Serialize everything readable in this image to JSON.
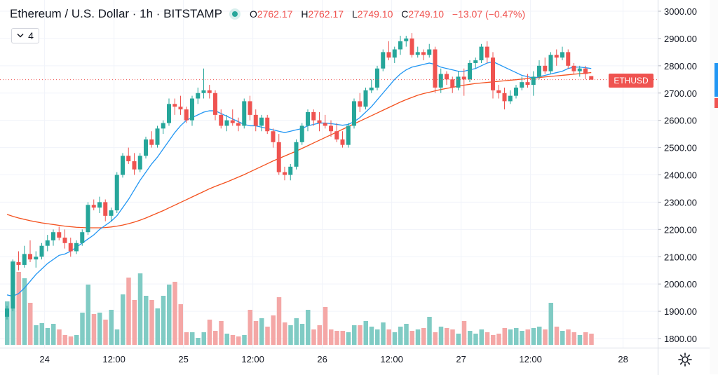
{
  "header": {
    "symbol_title": "Ethereum / U.S. Dollar · 1h · BITSTAMP",
    "ohlc": {
      "o_label": "O",
      "o": "2762.17",
      "h_label": "H",
      "h": "2762.17",
      "l_label": "L",
      "l": "2749.10",
      "c_label": "C",
      "c": "2749.10",
      "change": "−13.07 (−0.47%)"
    }
  },
  "study_toggle": {
    "count": "4"
  },
  "price_tag": {
    "label": "ETHUSD"
  },
  "colors": {
    "up": "#26a69a",
    "down": "#ef5350",
    "vol_up": "#80cbc4",
    "vol_down": "#f4a7a6",
    "ma_fast": "#2196f3",
    "ma_slow": "#f4511e",
    "grid": "#f0f3fa"
  },
  "chart_data": {
    "type": "candlestick",
    "ylim": [
      1780,
      3020
    ],
    "price_ticks": [
      "3000.00",
      "2900.00",
      "2800.00",
      "2700.00",
      "2600.00",
      "2500.00",
      "2400.00",
      "2300.00",
      "2200.00",
      "2100.00",
      "2000.00",
      "1900.00",
      "1800.00"
    ],
    "time_ticks": [
      "24",
      "12:00",
      "25",
      "12:00",
      "26",
      "12:00",
      "27",
      "12:00",
      "28"
    ],
    "candles": [
      [
        1880,
        1920,
        1870,
        1910
      ],
      [
        1910,
        2090,
        1900,
        2080
      ],
      [
        2080,
        2120,
        2050,
        2070
      ],
      [
        2070,
        2140,
        2060,
        2110
      ],
      [
        2110,
        2160,
        2080,
        2090
      ],
      [
        2090,
        2120,
        2060,
        2100
      ],
      [
        2100,
        2150,
        2090,
        2140
      ],
      [
        2140,
        2180,
        2120,
        2160
      ],
      [
        2160,
        2200,
        2140,
        2190
      ],
      [
        2190,
        2210,
        2160,
        2170
      ],
      [
        2170,
        2200,
        2130,
        2150
      ],
      [
        2150,
        2170,
        2100,
        2120
      ],
      [
        2120,
        2160,
        2110,
        2150
      ],
      [
        2150,
        2200,
        2140,
        2190
      ],
      [
        2190,
        2300,
        2180,
        2290
      ],
      [
        2290,
        2310,
        2270,
        2280
      ],
      [
        2280,
        2320,
        2260,
        2300
      ],
      [
        2300,
        2310,
        2230,
        2250
      ],
      [
        2250,
        2280,
        2230,
        2270
      ],
      [
        2270,
        2410,
        2260,
        2400
      ],
      [
        2400,
        2480,
        2390,
        2470
      ],
      [
        2470,
        2500,
        2440,
        2450
      ],
      [
        2450,
        2480,
        2400,
        2420
      ],
      [
        2420,
        2480,
        2410,
        2470
      ],
      [
        2470,
        2540,
        2460,
        2530
      ],
      [
        2530,
        2560,
        2500,
        2510
      ],
      [
        2510,
        2580,
        2500,
        2570
      ],
      [
        2570,
        2600,
        2550,
        2590
      ],
      [
        2590,
        2680,
        2580,
        2660
      ],
      [
        2660,
        2680,
        2620,
        2650
      ],
      [
        2650,
        2690,
        2620,
        2640
      ],
      [
        2640,
        2650,
        2590,
        2600
      ],
      [
        2600,
        2690,
        2580,
        2680
      ],
      [
        2680,
        2720,
        2660,
        2700
      ],
      [
        2700,
        2790,
        2680,
        2710
      ],
      [
        2710,
        2730,
        2680,
        2700
      ],
      [
        2700,
        2710,
        2600,
        2620
      ],
      [
        2620,
        2640,
        2570,
        2580
      ],
      [
        2580,
        2620,
        2560,
        2600
      ],
      [
        2600,
        2640,
        2580,
        2590
      ],
      [
        2590,
        2610,
        2560,
        2580
      ],
      [
        2580,
        2680,
        2570,
        2670
      ],
      [
        2670,
        2690,
        2600,
        2620
      ],
      [
        2620,
        2640,
        2560,
        2580
      ],
      [
        2580,
        2620,
        2560,
        2610
      ],
      [
        2610,
        2620,
        2550,
        2560
      ],
      [
        2560,
        2570,
        2500,
        2520
      ],
      [
        2520,
        2550,
        2400,
        2410
      ],
      [
        2410,
        2430,
        2380,
        2400
      ],
      [
        2400,
        2440,
        2380,
        2430
      ],
      [
        2430,
        2530,
        2420,
        2520
      ],
      [
        2520,
        2590,
        2510,
        2580
      ],
      [
        2580,
        2640,
        2560,
        2630
      ],
      [
        2630,
        2640,
        2580,
        2600
      ],
      [
        2600,
        2630,
        2560,
        2590
      ],
      [
        2590,
        2620,
        2570,
        2580
      ],
      [
        2580,
        2600,
        2540,
        2560
      ],
      [
        2560,
        2590,
        2520,
        2530
      ],
      [
        2530,
        2560,
        2500,
        2510
      ],
      [
        2510,
        2590,
        2500,
        2580
      ],
      [
        2580,
        2680,
        2570,
        2670
      ],
      [
        2670,
        2700,
        2630,
        2650
      ],
      [
        2650,
        2720,
        2640,
        2710
      ],
      [
        2710,
        2750,
        2700,
        2720
      ],
      [
        2720,
        2800,
        2710,
        2790
      ],
      [
        2790,
        2860,
        2780,
        2850
      ],
      [
        2850,
        2890,
        2820,
        2830
      ],
      [
        2830,
        2870,
        2810,
        2860
      ],
      [
        2860,
        2910,
        2840,
        2890
      ],
      [
        2890,
        2910,
        2870,
        2900
      ],
      [
        2900,
        2920,
        2830,
        2840
      ],
      [
        2840,
        2870,
        2830,
        2850
      ],
      [
        2850,
        2860,
        2820,
        2840
      ],
      [
        2840,
        2880,
        2830,
        2860
      ],
      [
        2860,
        2870,
        2700,
        2720
      ],
      [
        2720,
        2790,
        2700,
        2770
      ],
      [
        2770,
        2780,
        2730,
        2750
      ],
      [
        2750,
        2760,
        2700,
        2720
      ],
      [
        2720,
        2780,
        2710,
        2760
      ],
      [
        2760,
        2790,
        2690,
        2750
      ],
      [
        2750,
        2820,
        2740,
        2810
      ],
      [
        2810,
        2830,
        2790,
        2820
      ],
      [
        2820,
        2880,
        2810,
        2870
      ],
      [
        2870,
        2890,
        2810,
        2830
      ],
      [
        2830,
        2850,
        2680,
        2710
      ],
      [
        2710,
        2730,
        2680,
        2700
      ],
      [
        2700,
        2720,
        2640,
        2670
      ],
      [
        2670,
        2710,
        2660,
        2690
      ],
      [
        2690,
        2730,
        2680,
        2720
      ],
      [
        2720,
        2760,
        2710,
        2740
      ],
      [
        2740,
        2770,
        2720,
        2730
      ],
      [
        2730,
        2780,
        2690,
        2760
      ],
      [
        2760,
        2820,
        2750,
        2800
      ],
      [
        2800,
        2830,
        2770,
        2780
      ],
      [
        2780,
        2850,
        2770,
        2840
      ],
      [
        2840,
        2860,
        2800,
        2830
      ],
      [
        2830,
        2870,
        2820,
        2850
      ],
      [
        2850,
        2860,
        2790,
        2800
      ],
      [
        2800,
        2810,
        2770,
        2780
      ],
      [
        2780,
        2800,
        2760,
        2790
      ],
      [
        2790,
        2800,
        2750,
        2770
      ],
      [
        2762.17,
        2762.17,
        2749.1,
        2749.1
      ]
    ],
    "volume": [
      62,
      120,
      104,
      95,
      60,
      28,
      31,
      24,
      30,
      22,
      14,
      12,
      14,
      46,
      86,
      44,
      46,
      36,
      50,
      22,
      72,
      96,
      64,
      102,
      70,
      64,
      52,
      70,
      86,
      90,
      58,
      18,
      18,
      10,
      18,
      36,
      20,
      34,
      16,
      14,
      12,
      14,
      50,
      34,
      38,
      26,
      42,
      68,
      32,
      28,
      38,
      30,
      50,
      22,
      28,
      54,
      22,
      20,
      20,
      18,
      28,
      28,
      34,
      26,
      22,
      32,
      22,
      18,
      26,
      30,
      20,
      22,
      24,
      40,
      18,
      26,
      24,
      22,
      16,
      34,
      20,
      16,
      22,
      18,
      14,
      16,
      24,
      22,
      24,
      20,
      22,
      24,
      26,
      22,
      60,
      26,
      20,
      22,
      18,
      14,
      18,
      16
    ],
    "ma_fast": [
      1960,
      1955,
      1965,
      1985,
      2010,
      2035,
      2055,
      2075,
      2090,
      2105,
      2110,
      2120,
      2135,
      2150,
      2165,
      2180,
      2200,
      2215,
      2230,
      2250,
      2280,
      2310,
      2345,
      2380,
      2410,
      2440,
      2465,
      2495,
      2525,
      2555,
      2580,
      2600,
      2610,
      2620,
      2630,
      2635,
      2635,
      2625,
      2615,
      2605,
      2595,
      2585,
      2580,
      2580,
      2575,
      2570,
      2565,
      2560,
      2555,
      2560,
      2565,
      2570,
      2580,
      2585,
      2590,
      2590,
      2588,
      2585,
      2582,
      2585,
      2595,
      2610,
      2630,
      2650,
      2675,
      2700,
      2725,
      2750,
      2770,
      2785,
      2795,
      2800,
      2805,
      2810,
      2805,
      2795,
      2790,
      2785,
      2780,
      2780,
      2785,
      2790,
      2800,
      2810,
      2815,
      2805,
      2795,
      2785,
      2775,
      2765,
      2760,
      2755,
      2760,
      2765,
      2770,
      2775,
      2780,
      2790,
      2795,
      2795,
      2793,
      2790
    ],
    "ma_slow": [
      2255,
      2248,
      2242,
      2237,
      2232,
      2228,
      2224,
      2221,
      2218,
      2215,
      2212,
      2210,
      2208,
      2207,
      2206,
      2206,
      2206,
      2207,
      2209,
      2212,
      2216,
      2221,
      2227,
      2234,
      2242,
      2251,
      2260,
      2269,
      2279,
      2289,
      2299,
      2309,
      2319,
      2329,
      2339,
      2349,
      2358,
      2366,
      2374,
      2383,
      2392,
      2401,
      2411,
      2421,
      2431,
      2441,
      2451,
      2460,
      2469,
      2478,
      2487,
      2497,
      2507,
      2517,
      2527,
      2537,
      2547,
      2557,
      2567,
      2577,
      2587,
      2597,
      2607,
      2617,
      2627,
      2637,
      2647,
      2657,
      2667,
      2676,
      2684,
      2692,
      2698,
      2703,
      2708,
      2713,
      2717,
      2721,
      2725,
      2729,
      2732,
      2735,
      2737,
      2739,
      2741,
      2743,
      2745,
      2747,
      2749,
      2751,
      2753,
      2755,
      2757,
      2759,
      2761,
      2763,
      2765,
      2767,
      2769,
      2771,
      2773,
      2775
    ]
  }
}
